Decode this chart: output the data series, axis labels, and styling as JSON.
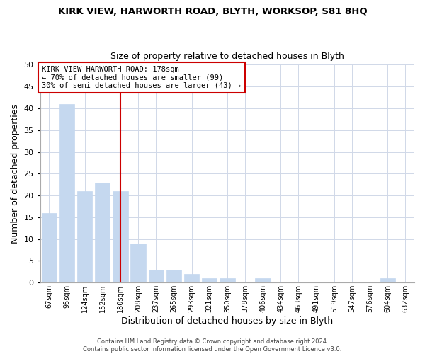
{
  "title": "KIRK VIEW, HARWORTH ROAD, BLYTH, WORKSOP, S81 8HQ",
  "subtitle": "Size of property relative to detached houses in Blyth",
  "xlabel": "Distribution of detached houses by size in Blyth",
  "ylabel": "Number of detached properties",
  "categories": [
    "67sqm",
    "95sqm",
    "124sqm",
    "152sqm",
    "180sqm",
    "208sqm",
    "237sqm",
    "265sqm",
    "293sqm",
    "321sqm",
    "350sqm",
    "378sqm",
    "406sqm",
    "434sqm",
    "463sqm",
    "491sqm",
    "519sqm",
    "547sqm",
    "576sqm",
    "604sqm",
    "632sqm"
  ],
  "values": [
    16,
    41,
    21,
    23,
    21,
    9,
    3,
    3,
    2,
    1,
    1,
    0,
    1,
    0,
    0,
    0,
    0,
    0,
    0,
    1,
    0
  ],
  "bar_color": "#c5d8ef",
  "bar_edge_color": "#c5d8ef",
  "vline_x": 4,
  "vline_color": "#cc0000",
  "annotation_text": "KIRK VIEW HARWORTH ROAD: 178sqm\n← 70% of detached houses are smaller (99)\n30% of semi-detached houses are larger (43) →",
  "annotation_box_color": "#ffffff",
  "annotation_box_edge_color": "#cc0000",
  "ylim": [
    0,
    50
  ],
  "yticks": [
    0,
    5,
    10,
    15,
    20,
    25,
    30,
    35,
    40,
    45,
    50
  ],
  "footer": "Contains HM Land Registry data © Crown copyright and database right 2024.\nContains public sector information licensed under the Open Government Licence v3.0.",
  "grid_color": "#d0d8e8",
  "background_color": "#ffffff"
}
